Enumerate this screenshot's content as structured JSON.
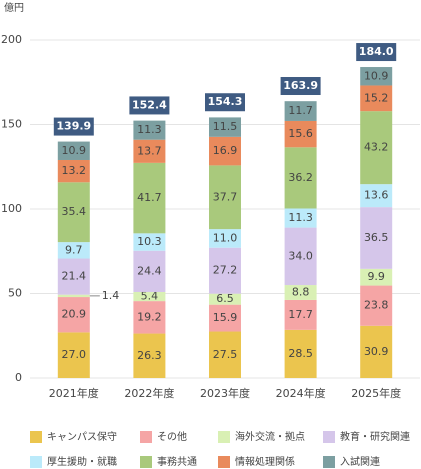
{
  "chart_data": {
    "type": "stacked-bar",
    "y_label": "億円",
    "categories": [
      "2021年度",
      "2022年度",
      "2023年度",
      "2024年度",
      "2025年度"
    ],
    "series": [
      {
        "name": "キャンパス保守",
        "color": "#ebc54e",
        "values": [
          27.0,
          26.3,
          27.5,
          28.5,
          30.9
        ],
        "value_labels": [
          "27.0",
          "26.3",
          "27.5",
          "28.5",
          "30.9"
        ]
      },
      {
        "name": "その他",
        "color": "#f5a5a5",
        "values": [
          20.9,
          19.2,
          15.9,
          17.7,
          23.8
        ],
        "value_labels": [
          "20.9",
          "19.2",
          "15.9",
          "17.7",
          "23.8"
        ]
      },
      {
        "name": "海外交流・拠点",
        "color": "#d9f0b4",
        "values": [
          1.4,
          5.4,
          6.5,
          8.8,
          9.9
        ],
        "value_labels": [
          "1.4",
          "5.4",
          "6.5",
          "8.8",
          "9.9"
        ]
      },
      {
        "name": "教育・研究関連",
        "color": "#d5c6ea",
        "values": [
          21.4,
          24.4,
          27.2,
          34.0,
          36.5
        ],
        "value_labels": [
          "21.4",
          "24.4",
          "27.2",
          "34.0",
          "36.5"
        ]
      },
      {
        "name": "厚生援助・就職",
        "color": "#bbeafa",
        "values": [
          9.7,
          10.3,
          11.0,
          11.3,
          13.6
        ],
        "value_labels": [
          "9.7",
          "10.3",
          "11.0",
          "11.3",
          "13.6"
        ]
      },
      {
        "name": "事務共通",
        "color": "#a9c97c",
        "values": [
          35.4,
          41.7,
          37.7,
          36.2,
          43.2
        ],
        "value_labels": [
          "35.4",
          "41.7",
          "37.7",
          "36.2",
          "43.2"
        ]
      },
      {
        "name": "情報処理関係",
        "color": "#e98a5c",
        "values": [
          13.2,
          13.7,
          16.9,
          15.6,
          15.2
        ],
        "value_labels": [
          "13.2",
          "13.7",
          "16.9",
          "15.6",
          "15.2"
        ]
      },
      {
        "name": "入試関連",
        "color": "#7c9fa1",
        "values": [
          10.9,
          11.3,
          11.5,
          11.7,
          10.9
        ],
        "value_labels": [
          "10.9",
          "11.3",
          "11.5",
          "11.7",
          "10.9"
        ]
      }
    ],
    "totals": [
      139.9,
      152.4,
      154.3,
      163.9,
      184.0
    ],
    "total_labels": [
      "139.9",
      "152.4",
      "154.3",
      "163.9",
      "184.0"
    ],
    "total_color": "#3f5b82",
    "ylim": [
      0,
      200
    ],
    "yticks": [
      0,
      50,
      100,
      150,
      200
    ],
    "grid": true
  }
}
